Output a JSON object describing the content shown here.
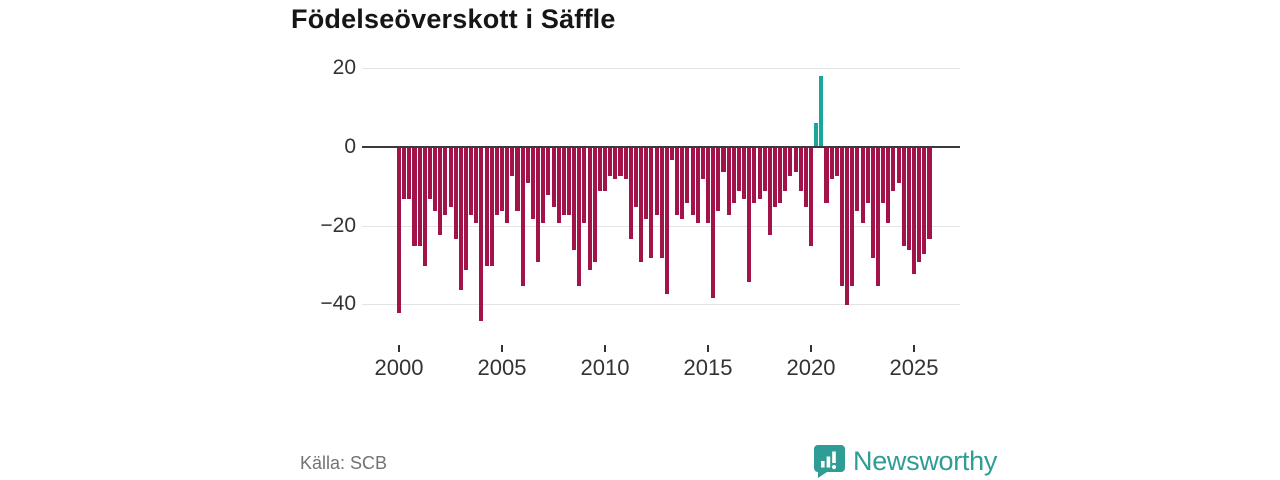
{
  "title": "Födelseöverskott i Säffle",
  "source": "Källa: SCB",
  "branding": {
    "name": "Newsworthy"
  },
  "colors": {
    "negative": "#a11349",
    "positive": "#17a79d",
    "brand": "#2f9c95",
    "axis_text": "#333333",
    "grid": "#e4e4e4",
    "zero_line": "#3a3a3a",
    "title": "#161616",
    "source_text": "#737373"
  },
  "chart_data": {
    "type": "bar",
    "title": "Födelseöverskott i Säffle",
    "xlabel": "",
    "ylabel": "",
    "unit": "quarters",
    "grid": true,
    "legend": false,
    "ylim": [
      -48,
      24
    ],
    "yticks": [
      20,
      0,
      -20,
      -40
    ],
    "xticks": [
      2000,
      2005,
      2010,
      2015,
      2020,
      2025
    ],
    "categories": [
      "2000 Q1",
      "2000 Q2",
      "2000 Q3",
      "2000 Q4",
      "2001 Q1",
      "2001 Q2",
      "2001 Q3",
      "2001 Q4",
      "2002 Q1",
      "2002 Q2",
      "2002 Q3",
      "2002 Q4",
      "2003 Q1",
      "2003 Q2",
      "2003 Q3",
      "2003 Q4",
      "2004 Q1",
      "2004 Q2",
      "2004 Q3",
      "2004 Q4",
      "2005 Q1",
      "2005 Q2",
      "2005 Q3",
      "2005 Q4",
      "2006 Q1",
      "2006 Q2",
      "2006 Q3",
      "2006 Q4",
      "2007 Q1",
      "2007 Q2",
      "2007 Q3",
      "2007 Q4",
      "2008 Q1",
      "2008 Q2",
      "2008 Q3",
      "2008 Q4",
      "2009 Q1",
      "2009 Q2",
      "2009 Q3",
      "2009 Q4",
      "2010 Q1",
      "2010 Q2",
      "2010 Q3",
      "2010 Q4",
      "2011 Q1",
      "2011 Q2",
      "2011 Q3",
      "2011 Q4",
      "2012 Q1",
      "2012 Q2",
      "2012 Q3",
      "2012 Q4",
      "2013 Q1",
      "2013 Q2",
      "2013 Q3",
      "2013 Q4",
      "2014 Q1",
      "2014 Q2",
      "2014 Q3",
      "2014 Q4",
      "2015 Q1",
      "2015 Q2",
      "2015 Q3",
      "2015 Q4",
      "2016 Q1",
      "2016 Q2",
      "2016 Q3",
      "2016 Q4",
      "2017 Q1",
      "2017 Q2",
      "2017 Q3",
      "2017 Q4",
      "2018 Q1",
      "2018 Q2",
      "2018 Q3",
      "2018 Q4",
      "2019 Q1",
      "2019 Q2",
      "2019 Q3",
      "2019 Q4",
      "2020 Q1",
      "2020 Q2",
      "2020 Q3",
      "2020 Q4",
      "2021 Q1",
      "2021 Q2",
      "2021 Q3",
      "2021 Q4",
      "2022 Q1",
      "2022 Q2",
      "2022 Q3",
      "2022 Q4",
      "2023 Q1",
      "2023 Q2",
      "2023 Q3",
      "2023 Q4",
      "2024 Q1",
      "2024 Q2",
      "2024 Q3",
      "2024 Q4",
      "2025 Q1",
      "2025 Q2",
      "2025 Q3",
      "2025 Q4"
    ],
    "values": [
      -42,
      -13,
      -13,
      -25,
      -25,
      -30,
      -13,
      -16,
      -22,
      -17,
      -15,
      -23,
      -36,
      -31,
      -17,
      -19,
      -44,
      -30,
      -30,
      -17,
      -16,
      -19,
      -7,
      -16,
      -35,
      -9,
      -18,
      -29,
      -19,
      -12,
      -15,
      -19,
      -17,
      -17,
      -26,
      -35,
      -19,
      -31,
      -29,
      -11,
      -11,
      -7,
      -8,
      -7,
      -8,
      -23,
      -15,
      -29,
      -18,
      -28,
      -17,
      -28,
      -37,
      -3,
      -17,
      -18,
      -14,
      -17,
      -19,
      -8,
      -19,
      -38,
      -16,
      -6,
      -17,
      -14,
      -11,
      -13,
      -34,
      -14,
      -13,
      -11,
      -22,
      -15,
      -14,
      -11,
      -7,
      -6,
      -11,
      -15,
      -25,
      6,
      18,
      -14,
      -8,
      -7,
      -35,
      -40,
      -35,
      -16,
      -19,
      -14,
      -28,
      -35,
      -14,
      -19,
      -11,
      -9,
      -25,
      -26,
      -32,
      -29,
      -27,
      -23
    ]
  }
}
